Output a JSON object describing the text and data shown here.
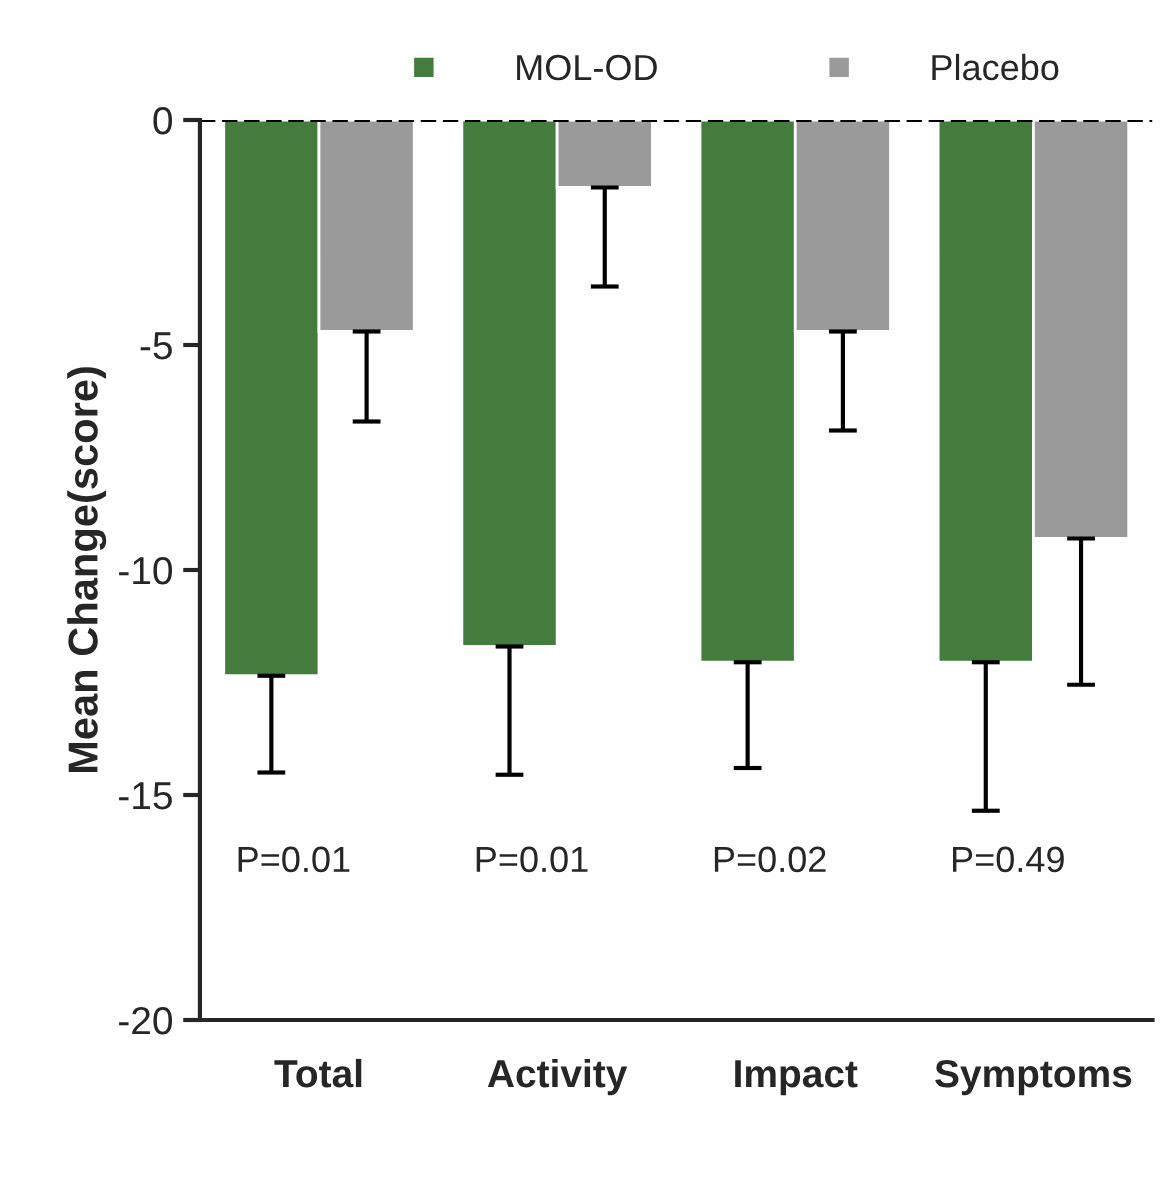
{
  "chart_data": {
    "type": "bar",
    "ylabel": "Mean Change(score)",
    "categories": [
      "Total",
      "Activity",
      "Impact",
      "Symptoms"
    ],
    "series": [
      {
        "name": "MOL-OD",
        "color": "#437c3c",
        "values": [
          -12.35,
          -11.7,
          -12.05,
          -12.05
        ],
        "errors": [
          [
            -14.5,
            -12.35
          ],
          [
            -14.55,
            -11.7
          ],
          [
            -14.4,
            -12.05
          ],
          [
            -15.35,
            -12.05
          ]
        ]
      },
      {
        "name": "Placebo",
        "color": "#9a9a9a",
        "values": [
          -4.7,
          -1.5,
          -4.7,
          -9.3
        ],
        "errors": [
          [
            -6.7,
            -4.7
          ],
          [
            -3.7,
            -1.5
          ],
          [
            -6.9,
            -4.7
          ],
          [
            -12.55,
            -9.3
          ]
        ]
      }
    ],
    "ylim": [
      -20,
      0
    ],
    "yticks": [
      -20,
      -15,
      -10,
      -5,
      0
    ],
    "ref_lines": [
      {
        "axis": "y",
        "value": 0,
        "line_style": "dashed",
        "color": "#000000"
      }
    ],
    "annotations": [
      "P=0.01",
      "P=0.01",
      "P=0.02",
      "P=0.49"
    ],
    "legend": "top",
    "grid": false
  }
}
